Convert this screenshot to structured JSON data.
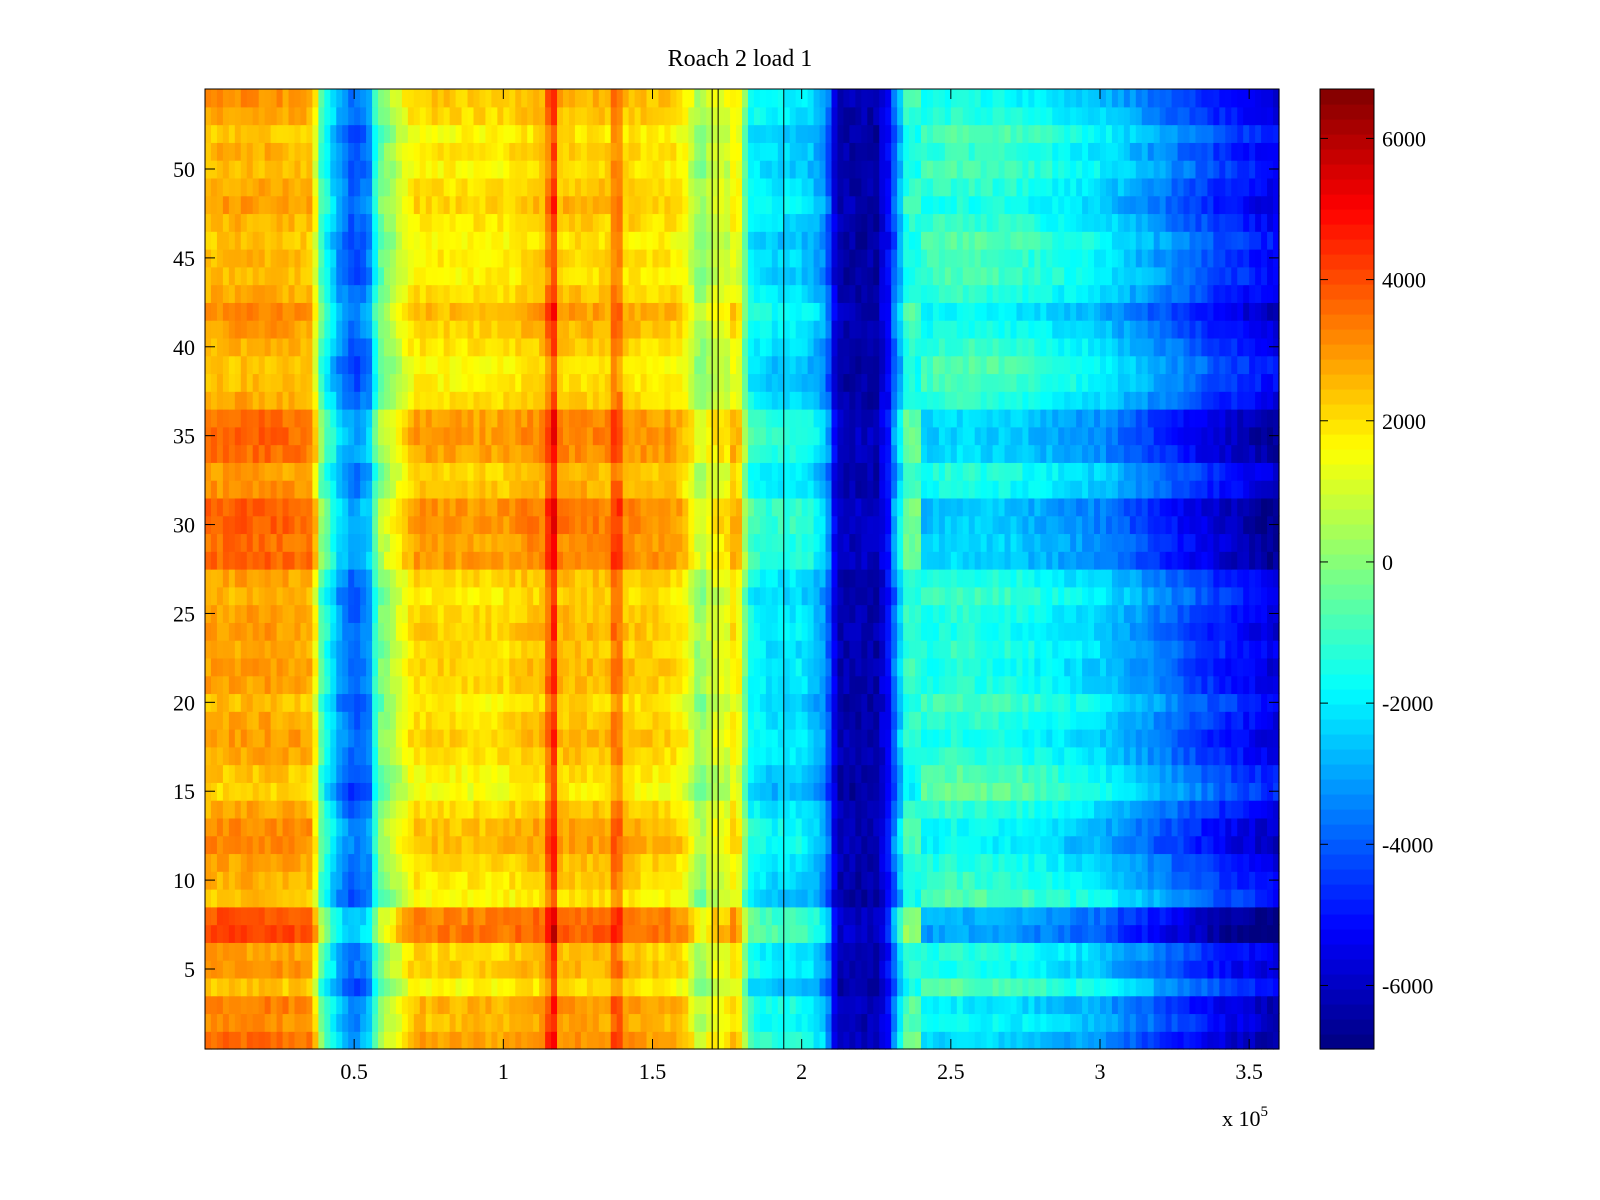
{
  "chart_data": {
    "type": "heatmap",
    "title": "Roach 2 load 1",
    "xlabel": "",
    "ylabel": "",
    "x_exponent_label": "x 10",
    "x_exponent_power": "5",
    "x_range": [
      0,
      3.6
    ],
    "y_range": [
      0.5,
      54.5
    ],
    "x_ticks": [
      0.5,
      1,
      1.5,
      2,
      2.5,
      3,
      3.5
    ],
    "x_tick_labels": [
      "0.5",
      "1",
      "1.5",
      "2",
      "2.5",
      "3",
      "3.5"
    ],
    "y_ticks": [
      5,
      10,
      15,
      20,
      25,
      30,
      35,
      40,
      45,
      50
    ],
    "y_tick_labels": [
      "5",
      "10",
      "15",
      "20",
      "25",
      "30",
      "35",
      "40",
      "45",
      "50"
    ],
    "colorbar": {
      "range": [
        -6900,
        6700
      ],
      "ticks": [
        6000,
        4000,
        2000,
        0,
        -2000,
        -4000,
        -6000
      ],
      "tick_labels": [
        "6000",
        "4000",
        "2000",
        "0",
        "-2000",
        "-4000",
        "-6000"
      ],
      "colormap": "jet"
    },
    "rows": 54,
    "column_profile_x": [
      0.0,
      0.2,
      0.36,
      0.39,
      0.45,
      0.5,
      0.55,
      0.58,
      0.7,
      1.0,
      1.15,
      1.17,
      1.19,
      1.4,
      1.58,
      1.62,
      1.66,
      1.7,
      1.75,
      1.8,
      1.83,
      1.9,
      1.98,
      2.03,
      2.08,
      2.12,
      2.25,
      2.29,
      2.35,
      2.5,
      2.7,
      3.0,
      3.2,
      3.4,
      3.6
    ],
    "column_profile_value": [
      2600,
      2700,
      2500,
      -900,
      -3200,
      -4200,
      -3400,
      -600,
      1900,
      1900,
      2400,
      3200,
      2300,
      2200,
      1900,
      1300,
      -200,
      900,
      1000,
      200,
      -1800,
      -2300,
      -2200,
      -2500,
      -3300,
      -6300,
      -6400,
      -5200,
      -1400,
      -1000,
      -1200,
      -2100,
      -3300,
      -4500,
      -5400
    ],
    "row_offsets": [
      900,
      500,
      700,
      -300,
      400,
      200,
      1500,
      1300,
      -300,
      0,
      200,
      600,
      500,
      100,
      -500,
      -300,
      100,
      300,
      100,
      -200,
      200,
      300,
      100,
      300,
      200,
      -100,
      200,
      1000,
      900,
      1100,
      1100,
      400,
      200,
      900,
      1000,
      900,
      100,
      -200,
      -300,
      0,
      300,
      600,
      100,
      -200,
      -100,
      -300,
      0,
      300,
      100,
      -200,
      0,
      -300,
      200,
      400
    ],
    "dark_columns_x": [
      1.7,
      1.72,
      1.94
    ],
    "hot_columns_x": [
      1.16,
      1.38,
      1.78
    ]
  }
}
